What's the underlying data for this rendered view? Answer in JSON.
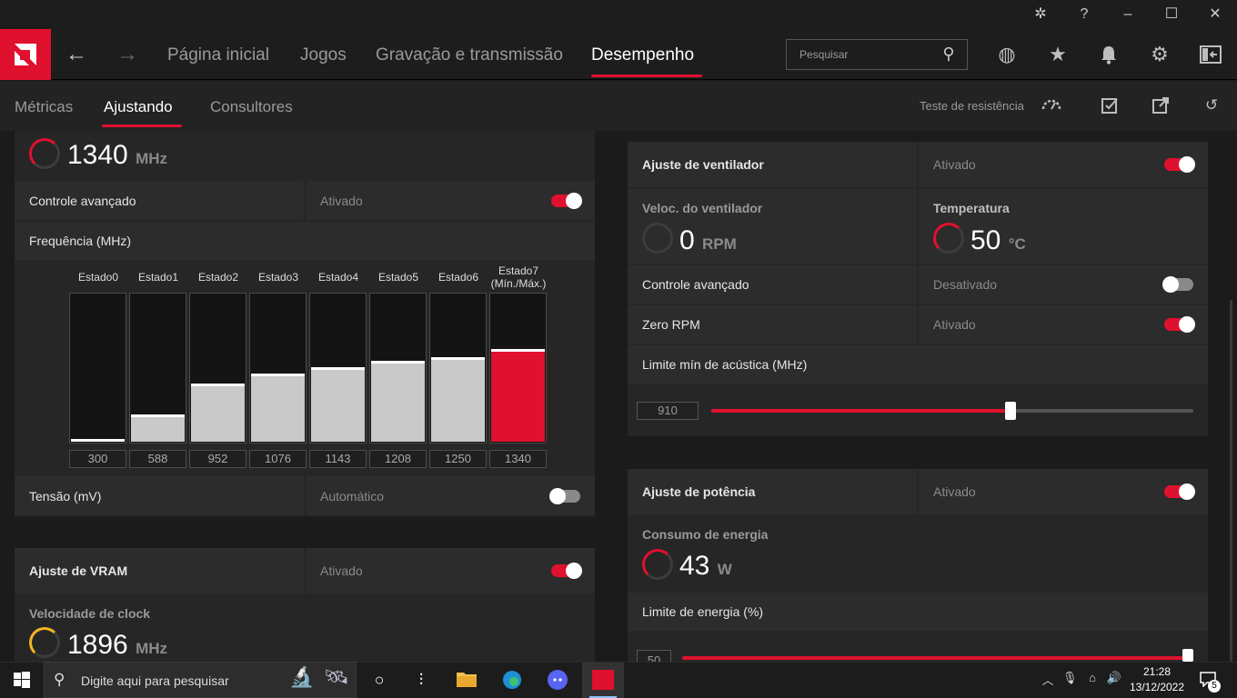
{
  "nav": {
    "items": [
      {
        "label": "Página inicial"
      },
      {
        "label": "Jogos"
      },
      {
        "label": "Gravação e transmissão"
      },
      {
        "label": "Desempenho"
      }
    ],
    "search_placeholder": "Pesquisar"
  },
  "subnav": {
    "items": [
      {
        "label": "Métricas"
      },
      {
        "label": "Ajustando"
      },
      {
        "label": "Consultores"
      }
    ],
    "stress_test_label": "Teste de resistência"
  },
  "gpu": {
    "clock_value": "1340",
    "clock_unit": "MHz",
    "advanced_label": "Controle avançado",
    "advanced_value": "Ativado",
    "advanced_on": true,
    "freq_label": "Frequência (MHz)",
    "states": [
      {
        "label": "Estado0",
        "value": "300",
        "fill": 0.02
      },
      {
        "label": "Estado1",
        "value": "588",
        "fill": 0.18
      },
      {
        "label": "Estado2",
        "value": "952",
        "fill": 0.39
      },
      {
        "label": "Estado3",
        "value": "1076",
        "fill": 0.46
      },
      {
        "label": "Estado4",
        "value": "1143",
        "fill": 0.5
      },
      {
        "label": "Estado5",
        "value": "1208",
        "fill": 0.54
      },
      {
        "label": "Estado6",
        "value": "1250",
        "fill": 0.57
      },
      {
        "label": "Estado7",
        "label2": "(Mín./Máx.)",
        "value": "1340",
        "fill": 0.62
      }
    ],
    "voltage_label": "Tensão (mV)",
    "voltage_value": "Automático",
    "voltage_on": false
  },
  "vram": {
    "title": "Ajuste de VRAM",
    "status": "Ativado",
    "on": true,
    "clock_label": "Velocidade de clock",
    "clock_value": "1896",
    "clock_unit": "MHz"
  },
  "fan": {
    "title": "Ajuste de ventilador",
    "status": "Ativado",
    "speed_label": "Veloc. do ventilador",
    "speed_value": "0",
    "speed_unit": "RPM",
    "temp_label": "Temperatura",
    "temp_value": "50",
    "temp_unit": "°C",
    "advanced_label": "Controle avançado",
    "advanced_value": "Desativado",
    "advanced_on": false,
    "zero_rpm_label": "Zero RPM",
    "zero_rpm_value": "Ativado",
    "zero_rpm_on": true,
    "acoustic_label": "Limite mín de acústica (MHz)",
    "acoustic_value": "910",
    "acoustic_fraction": 0.62
  },
  "power": {
    "title": "Ajuste de potência",
    "status": "Ativado",
    "consumption_label": "Consumo de energia",
    "consumption_value": "43",
    "consumption_unit": "W",
    "limit_label": "Limite de energia (%)",
    "limit_value": "50",
    "limit_fraction": 1.0
  },
  "taskbar": {
    "search_placeholder": "Digite aqui para pesquisar",
    "time": "21:28",
    "date": "13/12/2022",
    "notifications": "5"
  },
  "colors": {
    "accent": "#e0102f",
    "vram_gauge": "#f2b521"
  }
}
